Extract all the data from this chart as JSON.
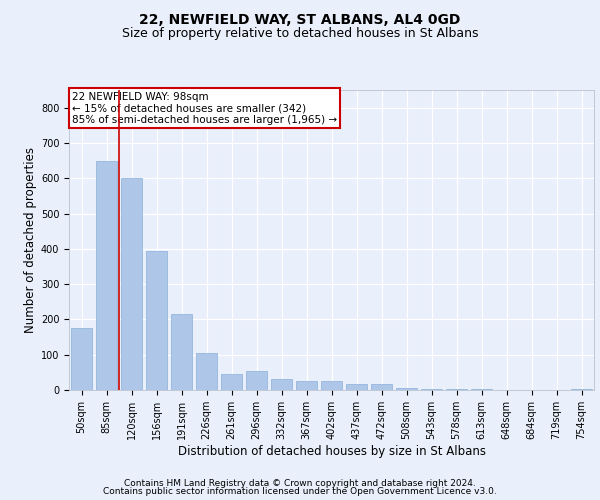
{
  "title1": "22, NEWFIELD WAY, ST ALBANS, AL4 0GD",
  "title2": "Size of property relative to detached houses in St Albans",
  "xlabel": "Distribution of detached houses by size in St Albans",
  "ylabel": "Number of detached properties",
  "categories": [
    "50sqm",
    "85sqm",
    "120sqm",
    "156sqm",
    "191sqm",
    "226sqm",
    "261sqm",
    "296sqm",
    "332sqm",
    "367sqm",
    "402sqm",
    "437sqm",
    "472sqm",
    "508sqm",
    "543sqm",
    "578sqm",
    "613sqm",
    "648sqm",
    "684sqm",
    "719sqm",
    "754sqm"
  ],
  "values": [
    175,
    648,
    600,
    395,
    215,
    105,
    45,
    55,
    32,
    25,
    25,
    18,
    18,
    5,
    3,
    2,
    2,
    1,
    1,
    1,
    4
  ],
  "bar_color": "#aec6e8",
  "bar_edge_color": "#8ab0d8",
  "property_sqm": 98,
  "property_label": "22 NEWFIELD WAY: 98sqm",
  "annotation_line1": "← 15% of detached houses are smaller (342)",
  "annotation_line2": "85% of semi-detached houses are larger (1,965) →",
  "annotation_box_color": "#ffffff",
  "annotation_box_edge": "#cc0000",
  "vertical_line_color": "#cc0000",
  "ylim": [
    0,
    850
  ],
  "yticks": [
    0,
    100,
    200,
    300,
    400,
    500,
    600,
    700,
    800
  ],
  "footer1": "Contains HM Land Registry data © Crown copyright and database right 2024.",
  "footer2": "Contains public sector information licensed under the Open Government Licence v3.0.",
  "background_color": "#eaf0fb",
  "plot_bg_color": "#eaf0fb",
  "grid_color": "#ffffff",
  "title_fontsize": 10,
  "subtitle_fontsize": 9,
  "axis_label_fontsize": 8.5,
  "tick_fontsize": 7,
  "footer_fontsize": 6.5,
  "annot_fontsize": 7.5
}
